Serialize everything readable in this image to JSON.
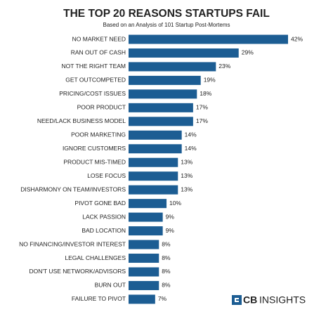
{
  "chart_data": {
    "type": "bar",
    "orientation": "horizontal",
    "title": "THE TOP 20 REASONS STARTUPS FAIL",
    "subtitle": "Based on an Analysis of 101 Startup Post-Mortems",
    "categories": [
      "NO MARKET NEED",
      "RAN OUT OF CASH",
      "NOT THE RIGHT TEAM",
      "GET OUTCOMPETED",
      "PRICING/COST ISSUES",
      "POOR PRODUCT",
      "NEED/LACK BUSINESS MODEL",
      "POOR MARKETING",
      "IGNORE CUSTOMERS",
      "PRODUCT MIS-TIMED",
      "LOSE FOCUS",
      "DISHARMONY ON TEAM/INVESTORS",
      "PIVOT GONE BAD",
      "LACK PASSION",
      "BAD LOCATION",
      "NO FINANCING/INVESTOR INTEREST",
      "LEGAL CHALLENGES",
      "DON'T USE NETWORK/ADVISORS",
      "BURN OUT",
      "FAILURE TO PIVOT"
    ],
    "values": [
      42,
      29,
      23,
      19,
      18,
      17,
      17,
      14,
      14,
      13,
      13,
      13,
      10,
      9,
      9,
      8,
      8,
      8,
      8,
      7
    ],
    "value_labels": [
      "42%",
      "29%",
      "23%",
      "19%",
      "18%",
      "17%",
      "17%",
      "14%",
      "14%",
      "13%",
      "13%",
      "13%",
      "10%",
      "9%",
      "9%",
      "8%",
      "8%",
      "8%",
      "8%",
      "7%"
    ],
    "color": "#1c5d93",
    "logo": {
      "prefix": "CB",
      "text": "INSIGHTS"
    }
  }
}
